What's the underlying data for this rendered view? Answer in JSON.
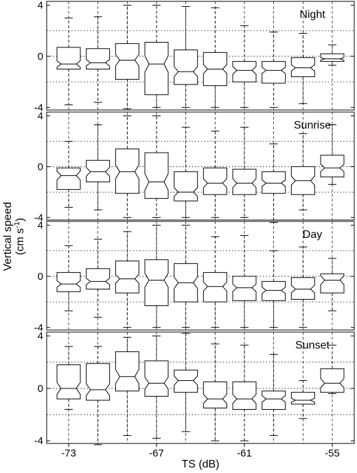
{
  "chart_data": {
    "type": "box",
    "x": [
      -73,
      -71,
      -69,
      -67,
      -65,
      -63,
      -61,
      -59,
      -57,
      -55
    ],
    "xticks": [
      "-73",
      "-67",
      "-61",
      "-55"
    ],
    "xlabel": "TS (dB)",
    "ylabel": "Vertical speed",
    "ylabel_unit": "(cm s",
    "ylabel_unit_exp": "-1",
    "ylabel_unit_close": ")",
    "yticks": [
      "-4",
      "0",
      "4"
    ],
    "ylim": [
      -4.2,
      4.3
    ],
    "grid": "dotted at y=-2,0,2; dashed vertical at x ticks",
    "panels": [
      {
        "label": "Night",
        "boxes": [
          {
            "x": -73,
            "whisker_low": -3.8,
            "q1": -1.0,
            "median": -0.6,
            "q3": 0.7,
            "whisker_high": 3.0,
            "notch_low": -0.85,
            "notch_high": -0.35
          },
          {
            "x": -71,
            "whisker_low": -3.6,
            "q1": -1.0,
            "median": -0.5,
            "q3": 0.6,
            "whisker_high": 3.1,
            "notch_low": -0.75,
            "notch_high": -0.25
          },
          {
            "x": -69,
            "whisker_low": -4.1,
            "q1": -1.8,
            "median": -0.3,
            "q3": 1.0,
            "whisker_high": 4.0,
            "notch_low": -0.75,
            "notch_high": 0.15
          },
          {
            "x": -67,
            "whisker_low": -4.0,
            "q1": -3.0,
            "median": -0.6,
            "q3": 1.1,
            "whisker_high": 4.0,
            "notch_low": -1.25,
            "notch_high": 0.05
          },
          {
            "x": -65,
            "whisker_low": -4.0,
            "q1": -2.2,
            "median": -1.2,
            "q3": 0.5,
            "whisker_high": 3.9,
            "notch_low": -1.6,
            "notch_high": -0.8
          },
          {
            "x": -63,
            "whisker_low": -4.0,
            "q1": -2.3,
            "median": -1.0,
            "q3": 0.3,
            "whisker_high": 3.8,
            "notch_low": -1.35,
            "notch_high": -0.65
          },
          {
            "x": -61,
            "whisker_low": -4.0,
            "q1": -2.0,
            "median": -1.1,
            "q3": -0.4,
            "whisker_high": 2.4,
            "notch_low": -1.4,
            "notch_high": -0.8
          },
          {
            "x": -59,
            "whisker_low": -4.0,
            "q1": -2.1,
            "median": -1.1,
            "q3": -0.4,
            "whisker_high": 1.9,
            "notch_low": -1.35,
            "notch_high": -0.85
          },
          {
            "x": -57,
            "whisker_low": -3.7,
            "q1": -1.6,
            "median": -0.9,
            "q3": -0.1,
            "whisker_high": 1.8,
            "notch_low": -1.15,
            "notch_high": -0.65
          },
          {
            "x": -55,
            "whisker_low": -0.7,
            "q1": -0.4,
            "median": -0.2,
            "q3": 0.2,
            "whisker_high": 0.9,
            "notch_low": -0.3,
            "notch_high": -0.1
          }
        ]
      },
      {
        "label": "Sunrise",
        "boxes": [
          {
            "x": -73,
            "whisker_low": -3.2,
            "q1": -1.8,
            "median": -0.7,
            "q3": -0.1,
            "whisker_high": 2.0,
            "notch_low": -1.05,
            "notch_high": -0.35
          },
          {
            "x": -71,
            "whisker_low": -3.4,
            "q1": -1.2,
            "median": -0.4,
            "q3": 0.5,
            "whisker_high": 3.3,
            "notch_low": -0.75,
            "notch_high": -0.05
          },
          {
            "x": -69,
            "whisker_low": -4.0,
            "q1": -2.1,
            "median": -0.4,
            "q3": 1.4,
            "whisker_high": 4.0,
            "notch_low": -0.95,
            "notch_high": 0.15
          },
          {
            "x": -67,
            "whisker_low": -4.0,
            "q1": -2.5,
            "median": -1.2,
            "q3": 1.1,
            "whisker_high": 4.0,
            "notch_low": -1.85,
            "notch_high": -0.55
          },
          {
            "x": -65,
            "whisker_low": -4.0,
            "q1": -2.7,
            "median": -2.0,
            "q3": -0.4,
            "whisker_high": 3.1,
            "notch_low": -2.35,
            "notch_high": -1.65
          },
          {
            "x": -63,
            "whisker_low": -4.0,
            "q1": -2.2,
            "median": -1.3,
            "q3": -0.1,
            "whisker_high": 2.8,
            "notch_low": -1.65,
            "notch_high": -0.95
          },
          {
            "x": -61,
            "whisker_low": -4.0,
            "q1": -2.2,
            "median": -1.3,
            "q3": -0.2,
            "whisker_high": 3.1,
            "notch_low": -1.65,
            "notch_high": -0.95
          },
          {
            "x": -59,
            "whisker_low": -4.4,
            "q1": -2.1,
            "median": -1.3,
            "q3": -0.4,
            "whisker_high": 1.8,
            "notch_low": -1.55,
            "notch_high": -1.05
          },
          {
            "x": -57,
            "whisker_low": -3.4,
            "q1": -2.2,
            "median": -1.1,
            "q3": 0.0,
            "whisker_high": 2.6,
            "notch_low": -1.45,
            "notch_high": -0.75
          },
          {
            "x": -55,
            "whisker_low": -1.4,
            "q1": -0.8,
            "median": -0.1,
            "q3": 0.9,
            "whisker_high": 3.3,
            "notch_low": -0.4,
            "notch_high": 0.2
          }
        ]
      },
      {
        "label": "Day",
        "boxes": [
          {
            "x": -73,
            "whisker_low": -2.7,
            "q1": -1.2,
            "median": -0.6,
            "q3": 0.3,
            "whisker_high": 2.4,
            "notch_low": -0.85,
            "notch_high": -0.35
          },
          {
            "x": -71,
            "whisker_low": -3.2,
            "q1": -1.0,
            "median": -0.4,
            "q3": 0.6,
            "whisker_high": 2.9,
            "notch_low": -0.65,
            "notch_high": -0.15
          },
          {
            "x": -69,
            "whisker_low": -4.0,
            "q1": -1.3,
            "median": -0.2,
            "q3": 1.2,
            "whisker_high": 3.5,
            "notch_low": -0.55,
            "notch_high": 0.15
          },
          {
            "x": -67,
            "whisker_low": -4.0,
            "q1": -2.3,
            "median": -0.3,
            "q3": 1.3,
            "whisker_high": 4.0,
            "notch_low": -0.85,
            "notch_high": 0.25
          },
          {
            "x": -65,
            "whisker_low": -4.0,
            "q1": -2.0,
            "median": -0.5,
            "q3": 1.0,
            "whisker_high": 4.0,
            "notch_low": -0.95,
            "notch_high": -0.05
          },
          {
            "x": -63,
            "whisker_low": -4.0,
            "q1": -2.0,
            "median": -0.8,
            "q3": 0.3,
            "whisker_high": 3.1,
            "notch_low": -1.15,
            "notch_high": -0.45
          },
          {
            "x": -61,
            "whisker_low": -4.0,
            "q1": -1.9,
            "median": -0.9,
            "q3": 0.0,
            "whisker_high": 3.2,
            "notch_low": -1.2,
            "notch_high": -0.6
          },
          {
            "x": -59,
            "whisker_low": -4.0,
            "q1": -1.9,
            "median": -1.1,
            "q3": -0.4,
            "whisker_high": 2.0,
            "notch_low": -1.35,
            "notch_high": -0.85
          },
          {
            "x": -57,
            "whisker_low": -4.0,
            "q1": -1.8,
            "median": -1.0,
            "q3": -0.1,
            "whisker_high": 2.3,
            "notch_low": -1.3,
            "notch_high": -0.7
          },
          {
            "x": -55,
            "whisker_low": -2.7,
            "q1": -1.3,
            "median": -0.3,
            "q3": 0.2,
            "whisker_high": 1.4,
            "notch_low": -0.65,
            "notch_high": 0.05
          }
        ]
      },
      {
        "label": "Sunset",
        "boxes": [
          {
            "x": -73,
            "whisker_low": -1.6,
            "q1": -0.8,
            "median": 0.0,
            "q3": 1.8,
            "whisker_high": 3.2,
            "notch_low": -0.45,
            "notch_high": 0.45
          },
          {
            "x": -71,
            "whisker_low": -4.3,
            "q1": -0.9,
            "median": -0.1,
            "q3": 1.9,
            "whisker_high": 3.2,
            "notch_low": -0.55,
            "notch_high": 0.35
          },
          {
            "x": -69,
            "whisker_low": -3.6,
            "q1": -0.2,
            "median": 0.9,
            "q3": 2.8,
            "whisker_high": 3.9,
            "notch_low": 0.35,
            "notch_high": 1.45
          },
          {
            "x": -67,
            "whisker_low": -3.8,
            "q1": -0.6,
            "median": 0.4,
            "q3": 2.1,
            "whisker_high": 4.0,
            "notch_low": -0.05,
            "notch_high": 0.85
          },
          {
            "x": -65,
            "whisker_low": -3.3,
            "q1": -0.3,
            "median": 0.6,
            "q3": 1.4,
            "whisker_high": 4.2,
            "notch_low": 0.25,
            "notch_high": 0.95
          },
          {
            "x": -63,
            "whisker_low": -4.0,
            "q1": -1.5,
            "median": -0.8,
            "q3": 0.5,
            "whisker_high": 3.4,
            "notch_low": -1.15,
            "notch_high": -0.45
          },
          {
            "x": -61,
            "whisker_low": -4.0,
            "q1": -1.6,
            "median": -0.8,
            "q3": 0.5,
            "whisker_high": 3.3,
            "notch_low": -1.15,
            "notch_high": -0.45
          },
          {
            "x": -59,
            "whisker_low": -3.6,
            "q1": -1.6,
            "median": -0.8,
            "q3": -0.2,
            "whisker_high": 2.6,
            "notch_low": -1.05,
            "notch_high": -0.55
          },
          {
            "x": -57,
            "whisker_low": -2.3,
            "q1": -1.2,
            "median": -0.9,
            "q3": -0.3,
            "whisker_high": 0.6,
            "notch_low": -1.05,
            "notch_high": -0.75
          },
          {
            "x": -55,
            "whisker_low": -0.4,
            "q1": -0.3,
            "median": 0.4,
            "q3": 1.5,
            "whisker_high": 3.3,
            "notch_low": 0.05,
            "notch_high": 0.75
          }
        ]
      }
    ]
  }
}
